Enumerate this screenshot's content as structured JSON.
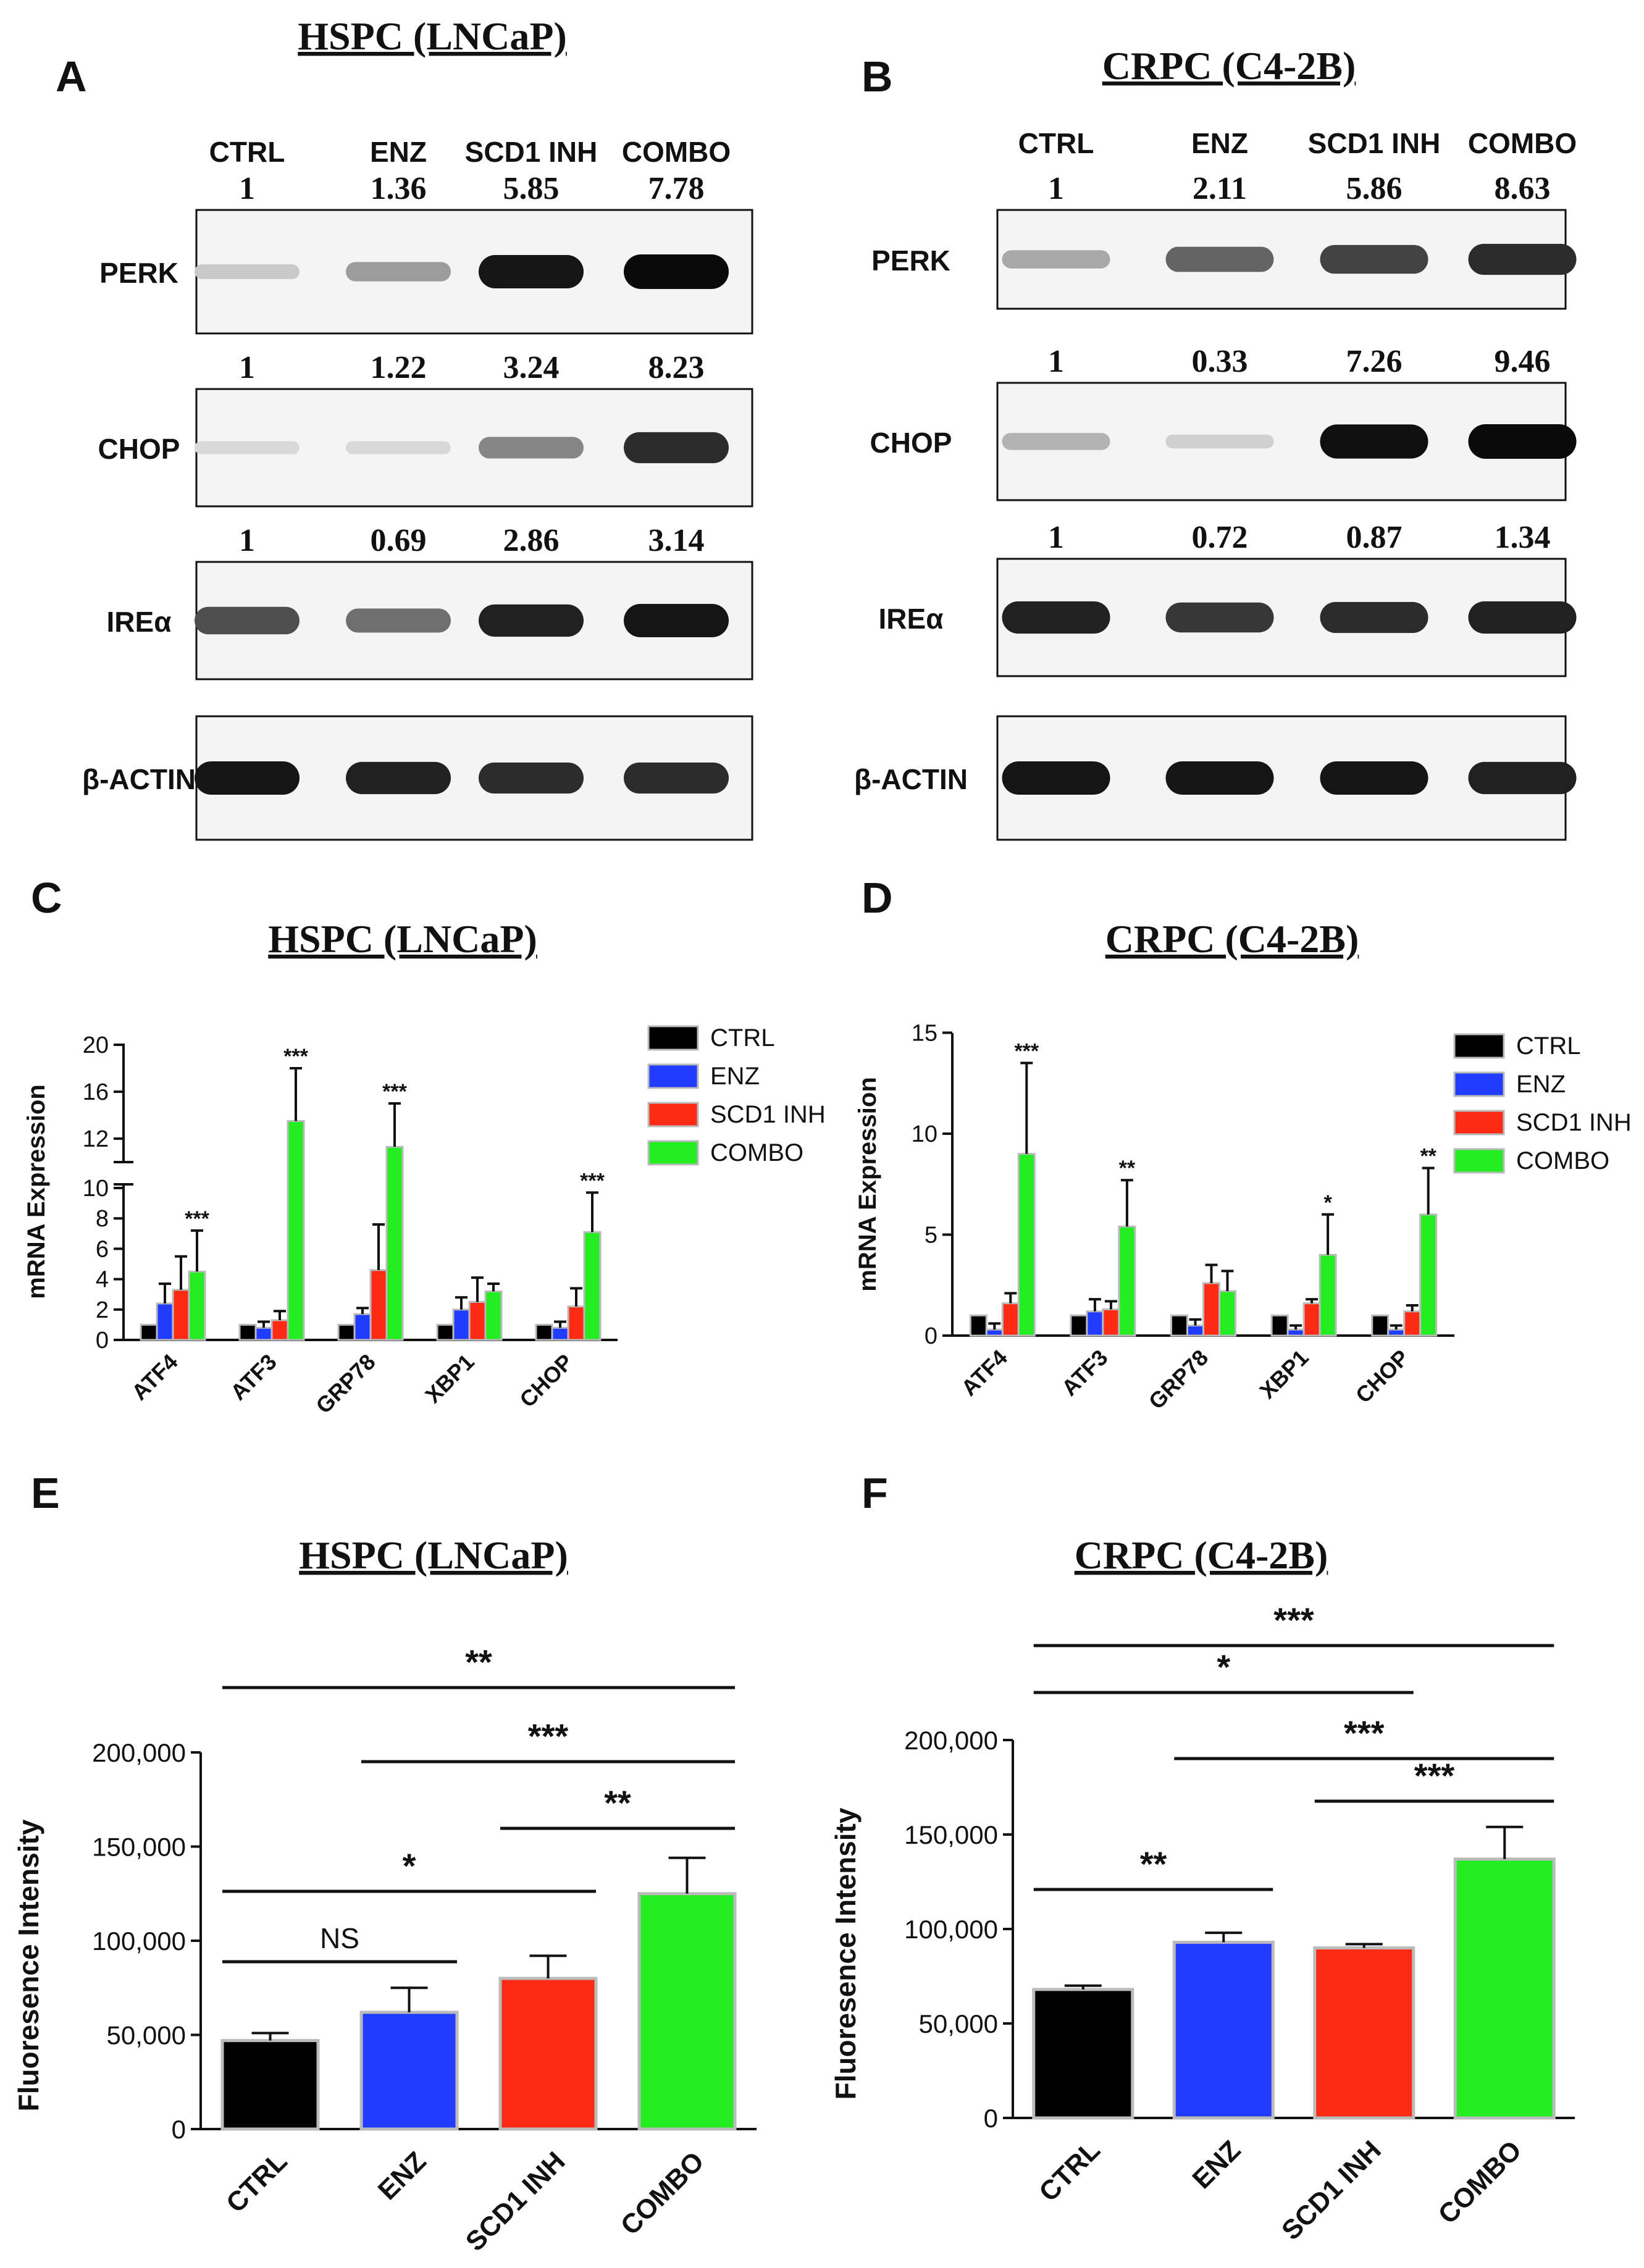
{
  "panels": {
    "A": {
      "letter": "A",
      "title": "HSPC (LNCaP)"
    },
    "B": {
      "letter": "B",
      "title": "CRPC (C4-2B)"
    },
    "C": {
      "letter": "C",
      "title": "HSPC (LNCaP)"
    },
    "D": {
      "letter": "D",
      "title": "CRPC (C4-2B)"
    },
    "E": {
      "letter": "E",
      "title": "HSPC (LNCaP)"
    },
    "F": {
      "letter": "F",
      "title": "CRPC (C4-2B)"
    }
  },
  "blots": {
    "lanes": [
      "CTRL",
      "ENZ",
      "SCD1 INH",
      "COMBO"
    ],
    "A": [
      {
        "protein": "PERK",
        "ratios": [
          "1",
          "1.36",
          "5.85",
          "7.78"
        ],
        "intensity": [
          0.15,
          0.35,
          0.95,
          1.0
        ]
      },
      {
        "protein": "CHOP",
        "ratios": [
          "1",
          "1.22",
          "3.24",
          "8.23"
        ],
        "intensity": [
          0.08,
          0.08,
          0.45,
          0.85
        ]
      },
      {
        "protein": "IREα",
        "ratios": [
          "1",
          "0.69",
          "2.86",
          "3.14"
        ],
        "intensity": [
          0.7,
          0.55,
          0.9,
          0.95
        ]
      },
      {
        "protein": "β-ACTIN",
        "ratios": null,
        "intensity": [
          0.95,
          0.9,
          0.85,
          0.85
        ]
      }
    ],
    "B": [
      {
        "protein": "PERK",
        "ratios": [
          "1",
          "2.11",
          "5.86",
          "8.63"
        ],
        "intensity": [
          0.3,
          0.6,
          0.75,
          0.85
        ]
      },
      {
        "protein": "CHOP",
        "ratios": [
          "1",
          "0.33",
          "7.26",
          "9.46"
        ],
        "intensity": [
          0.25,
          0.12,
          0.98,
          1.0
        ]
      },
      {
        "protein": "IREα",
        "ratios": [
          "1",
          "0.72",
          "0.87",
          "1.34"
        ],
        "intensity": [
          0.9,
          0.8,
          0.85,
          0.9
        ]
      },
      {
        "protein": "β-ACTIN",
        "ratios": null,
        "intensity": [
          0.95,
          0.95,
          0.95,
          0.9
        ]
      }
    ]
  },
  "colors": {
    "CTRL": "#000000",
    "ENZ": "#1f3cff",
    "SCD1 INH": "#ff2a14",
    "COMBO": "#22ee22",
    "errbar_edge": "#bbbbbb"
  },
  "chart_data": [
    {
      "panel": "C",
      "type": "bar",
      "title": "HSPC (LNCaP)",
      "ylabel": "mRNA Expression",
      "categories": [
        "ATF4",
        "ATF3",
        "GRP78",
        "XBP1",
        "CHOP"
      ],
      "series": [
        {
          "name": "CTRL",
          "values": [
            1,
            1,
            1,
            1,
            1
          ],
          "errors": [
            0,
            0,
            0,
            0,
            0
          ]
        },
        {
          "name": "ENZ",
          "values": [
            2.4,
            0.8,
            1.7,
            2.0,
            0.8
          ],
          "errors": [
            1.3,
            0.4,
            0.4,
            0.8,
            0.4
          ]
        },
        {
          "name": "SCD1 INH",
          "values": [
            3.3,
            1.3,
            4.6,
            2.5,
            2.2
          ],
          "errors": [
            2.2,
            0.6,
            3.0,
            1.6,
            1.2
          ]
        },
        {
          "name": "COMBO",
          "values": [
            4.5,
            13.5,
            11.3,
            3.2,
            7.1
          ],
          "errors": [
            2.7,
            4.5,
            3.7,
            0.5,
            2.6
          ]
        }
      ],
      "significance": [
        "***",
        "***",
        "***",
        "",
        "***"
      ],
      "y_broken_axis": {
        "lower": [
          0,
          10
        ],
        "upper": [
          10,
          20
        ]
      },
      "yticks_lower": [
        0,
        2,
        4,
        6,
        8,
        10
      ],
      "yticks_upper": [
        12,
        16,
        20
      ],
      "legend_position": "top-right"
    },
    {
      "panel": "D",
      "type": "bar",
      "title": "CRPC (C4-2B)",
      "ylabel": "mRNA Expression",
      "categories": [
        "ATF4",
        "ATF3",
        "GRP78",
        "XBP1",
        "CHOP"
      ],
      "series": [
        {
          "name": "CTRL",
          "values": [
            1,
            1,
            1,
            1,
            1
          ],
          "errors": [
            0,
            0,
            0,
            0,
            0
          ]
        },
        {
          "name": "ENZ",
          "values": [
            0.3,
            1.2,
            0.5,
            0.3,
            0.3
          ],
          "errors": [
            0.3,
            0.6,
            0.3,
            0.2,
            0.2
          ]
        },
        {
          "name": "SCD1 INH",
          "values": [
            1.6,
            1.3,
            2.6,
            1.6,
            1.2
          ],
          "errors": [
            0.5,
            0.4,
            0.9,
            0.2,
            0.3
          ]
        },
        {
          "name": "COMBO",
          "values": [
            9.0,
            5.4,
            2.2,
            4.0,
            6.0
          ],
          "errors": [
            4.5,
            2.3,
            1.0,
            2.0,
            2.3
          ]
        }
      ],
      "significance": [
        "***",
        "**",
        "",
        "*",
        "**"
      ],
      "ylim": [
        0,
        15
      ],
      "yticks": [
        0,
        5,
        10,
        15
      ],
      "legend_position": "top-right"
    },
    {
      "panel": "E",
      "type": "bar",
      "title": "HSPC (LNCaP)",
      "ylabel": "Fluoresence Intensity",
      "categories": [
        "CTRL",
        "ENZ",
        "SCD1 INH",
        "COMBO"
      ],
      "values": [
        47000,
        62000,
        80000,
        125000
      ],
      "errors": [
        4000,
        13000,
        12000,
        19000
      ],
      "ylim": [
        0,
        200000
      ],
      "yticks": [
        "0",
        "50,000",
        "100,000",
        "150,000",
        "200,000"
      ],
      "comparisons": [
        {
          "from": 0,
          "to": 1,
          "label": "NS"
        },
        {
          "from": 0,
          "to": 2,
          "label": "*"
        },
        {
          "from": 2,
          "to": 3,
          "label": "**"
        },
        {
          "from": 1,
          "to": 3,
          "label": "***"
        },
        {
          "from": 0,
          "to": 3,
          "label": "**"
        }
      ]
    },
    {
      "panel": "F",
      "type": "bar",
      "title": "CRPC (C4-2B)",
      "ylabel": "Fluoresence Intensity",
      "categories": [
        "CTRL",
        "ENZ",
        "SCD1 INH",
        "COMBO"
      ],
      "values": [
        68000,
        93000,
        90000,
        137000
      ],
      "errors": [
        2000,
        5000,
        2000,
        17000
      ],
      "ylim": [
        0,
        200000
      ],
      "yticks": [
        "0",
        "50,000",
        "100,000",
        "150,000",
        "200,000"
      ],
      "comparisons": [
        {
          "from": 0,
          "to": 1,
          "label": "**"
        },
        {
          "from": 2,
          "to": 3,
          "label": "***"
        },
        {
          "from": 1,
          "to": 3,
          "label": "***"
        },
        {
          "from": 0,
          "to": 2,
          "label": "*"
        },
        {
          "from": 0,
          "to": 3,
          "label": "***"
        }
      ]
    }
  ]
}
